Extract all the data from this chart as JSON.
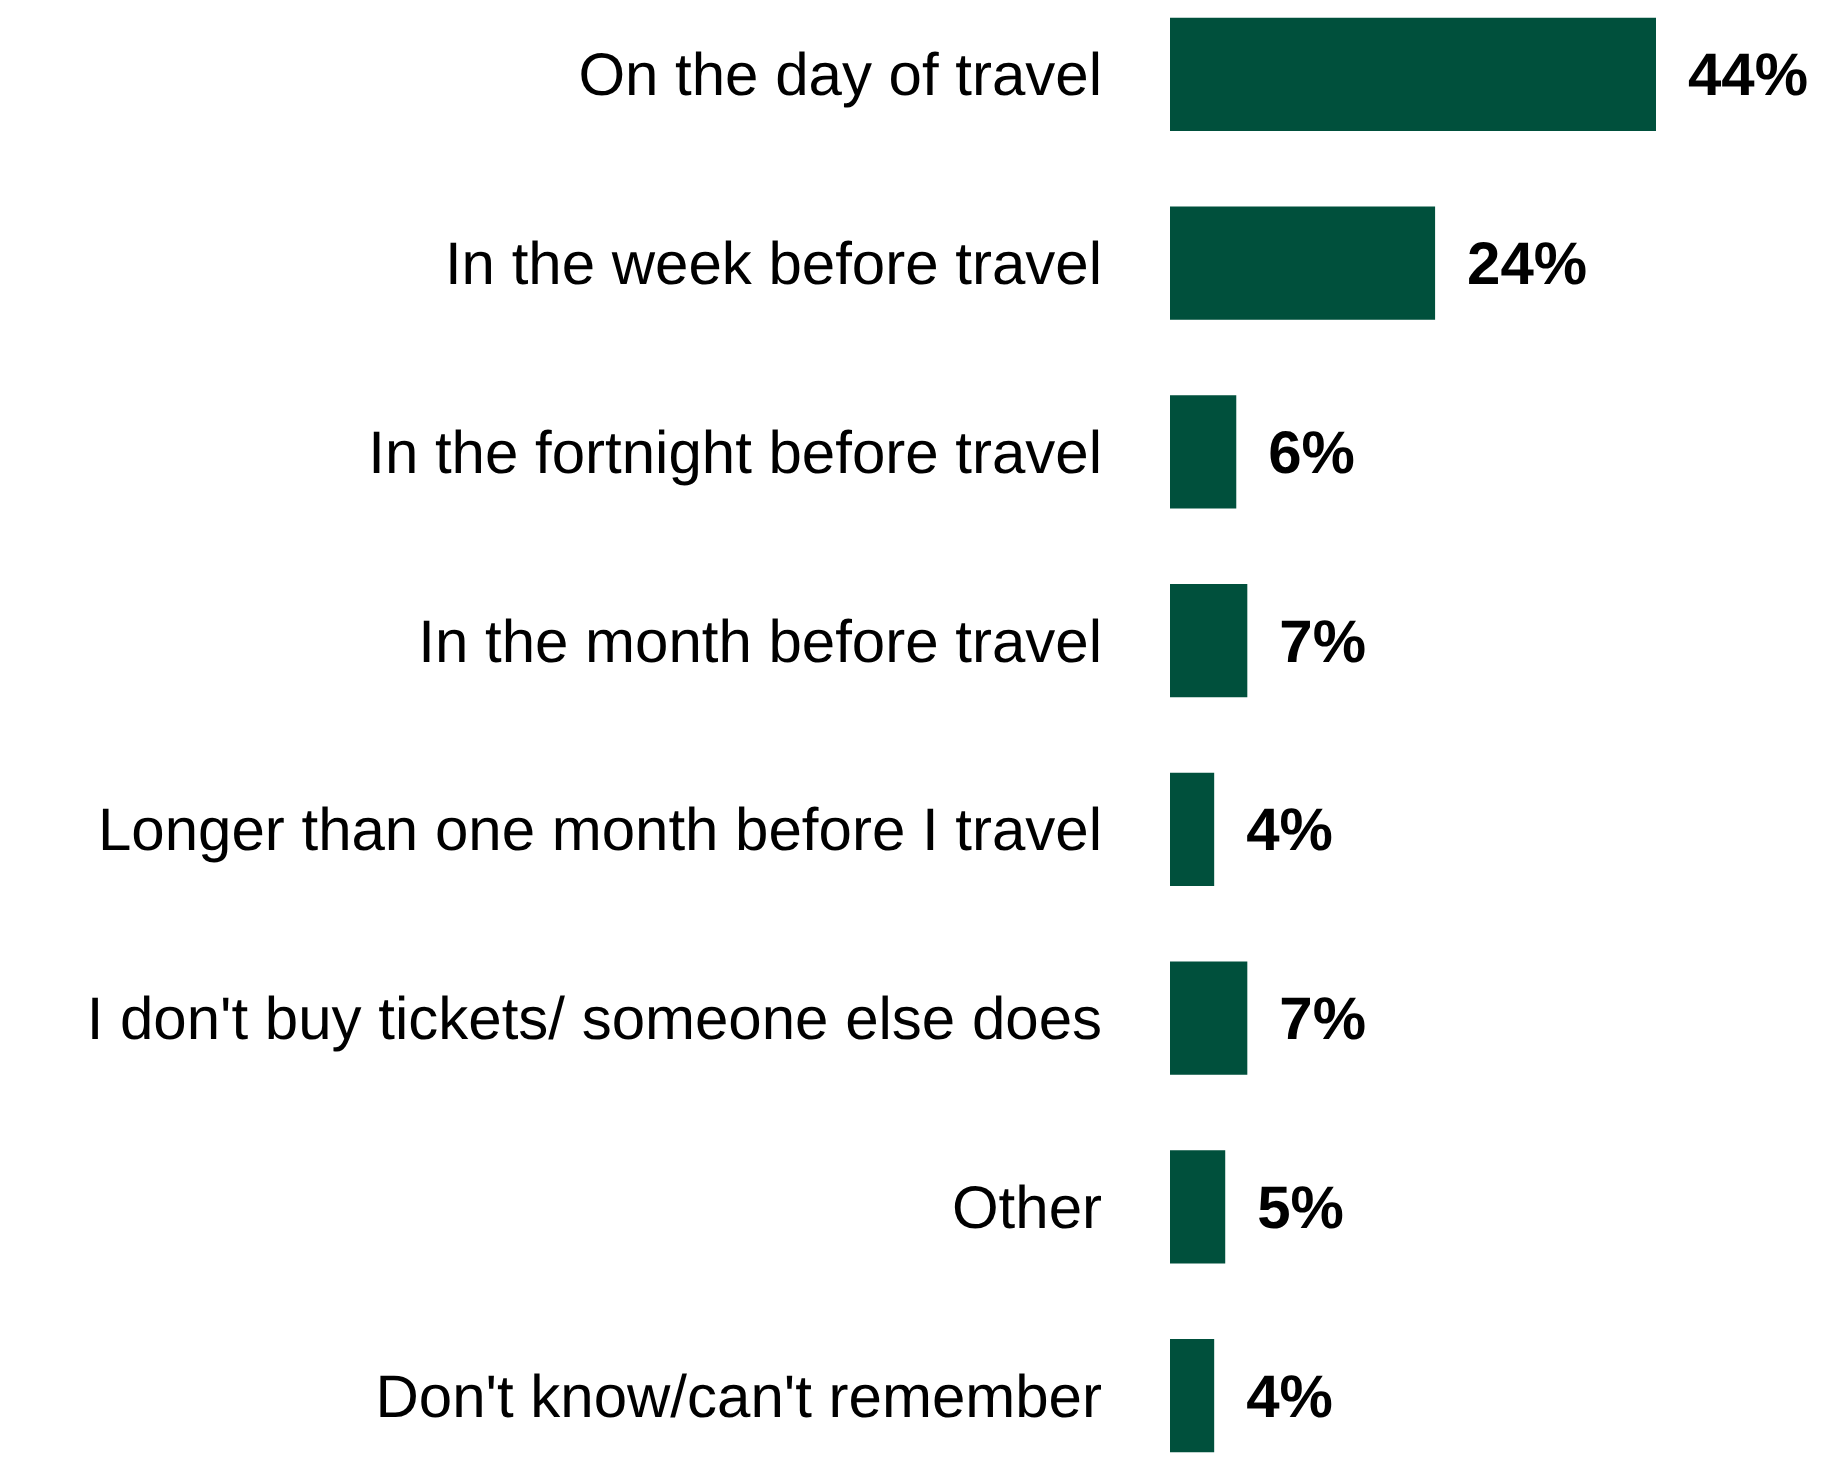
{
  "chart_data": {
    "type": "bar",
    "orientation": "horizontal",
    "categories": [
      "On the day of travel",
      "In the week before travel",
      "In the fortnight before travel",
      "In the month before travel",
      "Longer than one month before I travel",
      "I don't buy tickets/ someone else does",
      "Other",
      "Don't know/can't remember"
    ],
    "values": [
      44,
      24,
      6,
      7,
      4,
      7,
      5,
      4
    ],
    "value_labels": [
      "44%",
      "24%",
      "6%",
      "7%",
      "4%",
      "7%",
      "5%",
      "4%"
    ],
    "color": "#00503c"
  }
}
